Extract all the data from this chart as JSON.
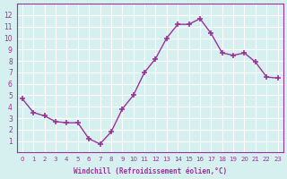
{
  "x": [
    0,
    1,
    2,
    3,
    4,
    5,
    6,
    7,
    8,
    9,
    10,
    11,
    12,
    13,
    14,
    15,
    16,
    17,
    18,
    19,
    20,
    21,
    22,
    23
  ],
  "y": [
    4.7,
    3.5,
    3.2,
    2.7,
    2.6,
    2.6,
    1.2,
    0.75,
    1.8,
    3.8,
    5.0,
    7.0,
    8.2,
    10.0,
    11.2,
    11.2,
    11.7,
    10.4,
    8.7,
    8.5,
    8.7,
    7.9,
    6.6,
    6.5
  ],
  "xlabel": "Windchill (Refroidissement éolien,°C)",
  "ylim": [
    0,
    13
  ],
  "xlim": [
    -0.5,
    23.5
  ],
  "yticks": [
    1,
    2,
    3,
    4,
    5,
    6,
    7,
    8,
    9,
    10,
    11,
    12
  ],
  "xticks": [
    0,
    1,
    2,
    3,
    4,
    5,
    6,
    7,
    8,
    9,
    10,
    11,
    12,
    13,
    14,
    15,
    16,
    17,
    18,
    19,
    20,
    21,
    22,
    23
  ],
  "line_color": "#993399",
  "bg_color": "#d6f0f0",
  "grid_color": "#ffffff",
  "label_color": "#993399"
}
